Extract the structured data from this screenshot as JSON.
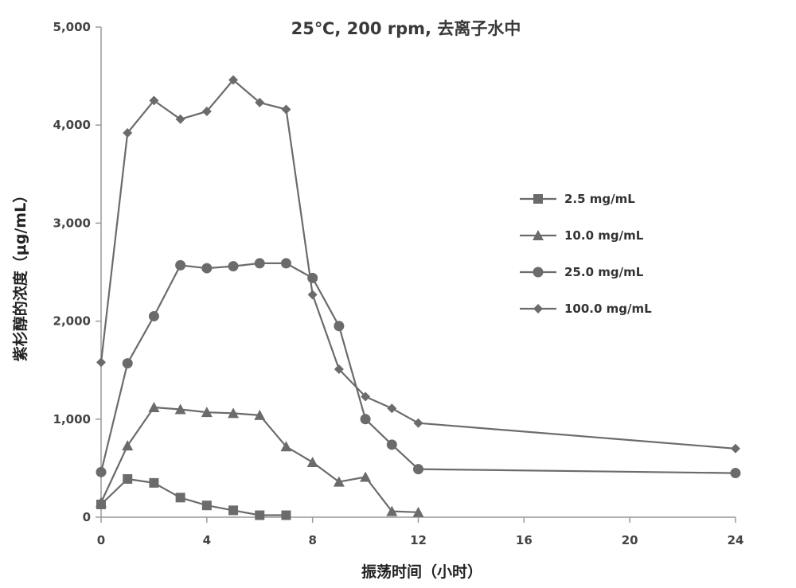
{
  "chart_data": {
    "type": "line",
    "title": "25℃, 200 rpm, 去离子水中",
    "xlabel": "振荡时间（小时）",
    "ylabel": "紫杉醇的浓度（μg/mL）",
    "xlim": [
      0,
      24
    ],
    "ylim": [
      0,
      5000
    ],
    "x_ticks": [
      0,
      4,
      8,
      12,
      16,
      20,
      24
    ],
    "y_ticks": [
      0,
      1000,
      2000,
      3000,
      4000,
      5000
    ],
    "x_tick_labels": [
      "0",
      "4",
      "8",
      "12",
      "16",
      "20",
      "24"
    ],
    "y_tick_labels": [
      "0",
      "1,000",
      "2,000",
      "3,000",
      "4,000",
      "5,000"
    ],
    "grid": false,
    "legend_position": "right",
    "series": [
      {
        "name": "2.5 mg/mL",
        "marker": "square",
        "color": "#6b6b6b",
        "points": [
          [
            0,
            130
          ],
          [
            1,
            390
          ],
          [
            2,
            350
          ],
          [
            3,
            200
          ],
          [
            4,
            120
          ],
          [
            5,
            70
          ],
          [
            6,
            20
          ],
          [
            7,
            20
          ]
        ]
      },
      {
        "name": "10.0 mg/mL",
        "marker": "triangle",
        "color": "#6b6b6b",
        "points": [
          [
            0,
            150
          ],
          [
            1,
            730
          ],
          [
            2,
            1120
          ],
          [
            3,
            1100
          ],
          [
            4,
            1070
          ],
          [
            5,
            1060
          ],
          [
            6,
            1040
          ],
          [
            7,
            720
          ],
          [
            8,
            560
          ],
          [
            9,
            360
          ],
          [
            10,
            410
          ],
          [
            11,
            60
          ],
          [
            12,
            50
          ]
        ]
      },
      {
        "name": "25.0 mg/mL",
        "marker": "circle",
        "color": "#6b6b6b",
        "points": [
          [
            0,
            460
          ],
          [
            1,
            1570
          ],
          [
            2,
            2050
          ],
          [
            3,
            2570
          ],
          [
            4,
            2540
          ],
          [
            5,
            2560
          ],
          [
            6,
            2590
          ],
          [
            7,
            2590
          ],
          [
            8,
            2440
          ],
          [
            9,
            1950
          ],
          [
            10,
            1000
          ],
          [
            11,
            740
          ],
          [
            12,
            490
          ],
          [
            24,
            450
          ]
        ]
      },
      {
        "name": "100.0 mg/mL",
        "marker": "diamond",
        "color": "#6b6b6b",
        "points": [
          [
            0,
            1580
          ],
          [
            1,
            3920
          ],
          [
            2,
            4250
          ],
          [
            3,
            4060
          ],
          [
            4,
            4140
          ],
          [
            5,
            4460
          ],
          [
            6,
            4230
          ],
          [
            7,
            4160
          ],
          [
            8,
            2270
          ],
          [
            9,
            1510
          ],
          [
            10,
            1230
          ],
          [
            11,
            1110
          ],
          [
            12,
            960
          ],
          [
            24,
            700
          ]
        ]
      }
    ]
  }
}
